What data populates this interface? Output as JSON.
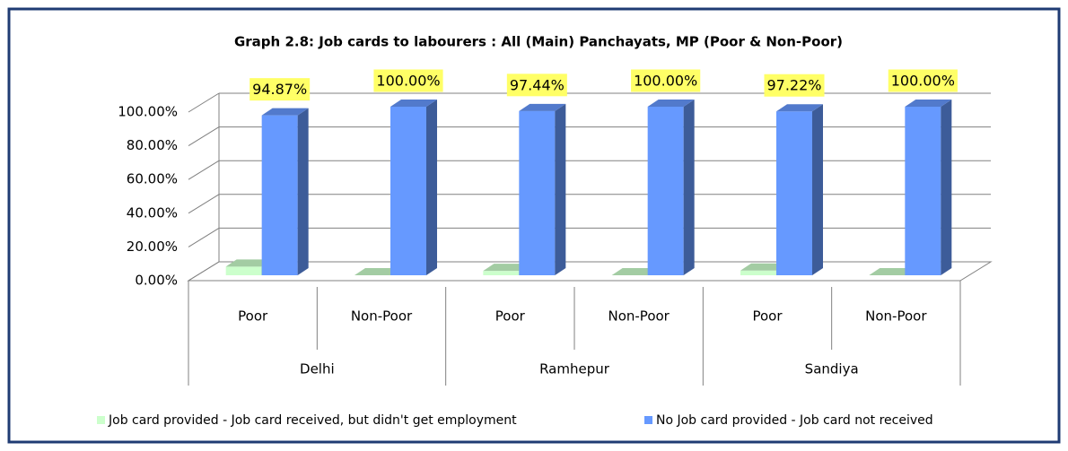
{
  "chart_data": {
    "type": "bar3d",
    "title": "Graph 2.8: Job cards to labourers : All (Main) Panchayats, MP (Poor & Non-Poor)",
    "categories": [
      "Poor",
      "Non-Poor",
      "Poor",
      "Non-Poor",
      "Poor",
      "Non-Poor"
    ],
    "groups": [
      "Delhi",
      "Ramhepur",
      "Sandiya"
    ],
    "series": [
      {
        "name": "Job card provided - Job card received, but didn't get employment",
        "color": "#ccffcc",
        "values": [
          5.13,
          0,
          2.56,
          0,
          2.78,
          0
        ]
      },
      {
        "name": "No Job card provided - Job card not received",
        "color": "#6699ff",
        "values": [
          94.87,
          100,
          97.44,
          100,
          97.22,
          100
        ],
        "value_labels": [
          "94.87%",
          "100.00%",
          "97.44%",
          "100.00%",
          "97.22%",
          "100.00%"
        ]
      }
    ],
    "ylim": [
      0,
      100
    ],
    "yticks": [
      {
        "value": 0,
        "label": "0.00%"
      },
      {
        "value": 20,
        "label": "20.00%"
      },
      {
        "value": 40,
        "label": "40.00%"
      },
      {
        "value": 60,
        "label": "60.00%"
      },
      {
        "value": 80,
        "label": "80.00%"
      },
      {
        "value": 100,
        "label": "100.00%"
      }
    ],
    "grid": true,
    "legend": "bottom"
  }
}
